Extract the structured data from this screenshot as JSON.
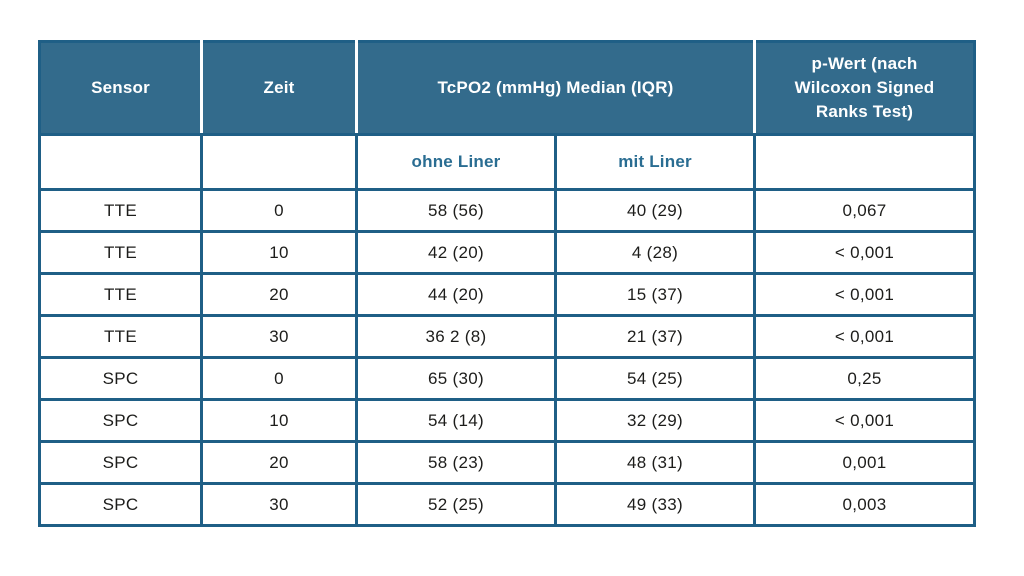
{
  "colors": {
    "page_bg": "#ffffff",
    "header_bg": "#336b8c",
    "border": "#1f5f86",
    "header_text": "#ffffff",
    "subheader_text": "#2a6d92",
    "body_text": "#1d1d1b"
  },
  "table": {
    "header": {
      "sensor": "Sensor",
      "zeit": "Zeit",
      "tcpo2": "TcPO2 (mmHg) Median (IQR)",
      "p_wert": "p-Wert (nach Wilcoxon Signed Ranks Test)"
    },
    "subheader": {
      "ohne_liner": "ohne Liner",
      "mit_liner": "mit Liner"
    },
    "rows": [
      {
        "sensor": "TTE",
        "zeit": "0",
        "ohne_liner": "58 (56)",
        "mit_liner": "40 (29)",
        "p_wert": "0,067"
      },
      {
        "sensor": "TTE",
        "zeit": "10",
        "ohne_liner": "42 (20)",
        "mit_liner": "4 (28)",
        "p_wert": "< 0,001"
      },
      {
        "sensor": "TTE",
        "zeit": "20",
        "ohne_liner": "44 (20)",
        "mit_liner": "15 (37)",
        "p_wert": "< 0,001"
      },
      {
        "sensor": "TTE",
        "zeit": "30",
        "ohne_liner": "36 2 (8)",
        "mit_liner": "21 (37)",
        "p_wert": "< 0,001"
      },
      {
        "sensor": "SPC",
        "zeit": "0",
        "ohne_liner": "65 (30)",
        "mit_liner": "54 (25)",
        "p_wert": "0,25"
      },
      {
        "sensor": "SPC",
        "zeit": "10",
        "ohne_liner": "54 (14)",
        "mit_liner": "32 (29)",
        "p_wert": "< 0,001"
      },
      {
        "sensor": "SPC",
        "zeit": "20",
        "ohne_liner": "58 (23)",
        "mit_liner": "48 (31)",
        "p_wert": "0,001"
      },
      {
        "sensor": "SPC",
        "zeit": "30",
        "ohne_liner": "52 (25)",
        "mit_liner": "49 (33)",
        "p_wert": "0,003"
      }
    ]
  },
  "chart_data": {
    "type": "table",
    "title": "",
    "columns": [
      "Sensor",
      "Zeit",
      "TcPO2 (mmHg) Median (IQR) ohne Liner",
      "TcPO2 (mmHg) Median (IQR) mit Liner",
      "p-Wert (nach Wilcoxon Signed Ranks Test)"
    ],
    "rows": [
      [
        "TTE",
        "0",
        "58 (56)",
        "40 (29)",
        "0,067"
      ],
      [
        "TTE",
        "10",
        "42 (20)",
        "4 (28)",
        "< 0,001"
      ],
      [
        "TTE",
        "20",
        "44 (20)",
        "15 (37)",
        "< 0,001"
      ],
      [
        "TTE",
        "30",
        "36 2 (8)",
        "21 (37)",
        "< 0,001"
      ],
      [
        "SPC",
        "0",
        "65 (30)",
        "54 (25)",
        "0,25"
      ],
      [
        "SPC",
        "10",
        "54 (14)",
        "32 (29)",
        "< 0,001"
      ],
      [
        "SPC",
        "20",
        "58 (23)",
        "48 (31)",
        "0,001"
      ],
      [
        "SPC",
        "30",
        "52 (25)",
        "49 (33)",
        "0,003"
      ]
    ]
  }
}
